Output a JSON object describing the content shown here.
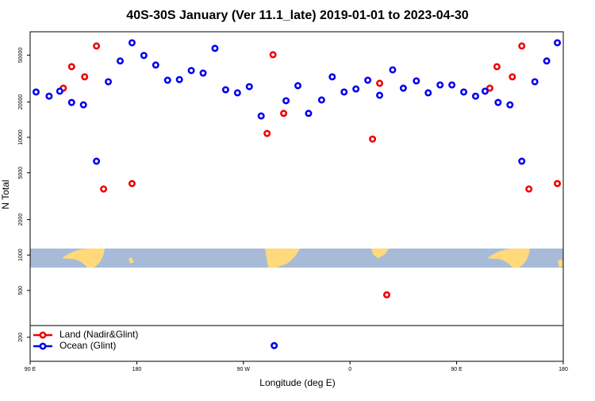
{
  "chart_data": {
    "type": "scatter",
    "title": "40S-30S January (Ver 11.1_late)   2019-01-01 to 2023-04-30",
    "x_label": "Longitude (deg E)",
    "y_label": "N Total",
    "log_y": true,
    "legend": "lower left",
    "xlim": [
      90,
      540
    ],
    "ylim": [
      125,
      79000
    ],
    "xticks": [
      {
        "value": 90,
        "label": "90 E"
      },
      180,
      {
        "value": 270,
        "label": "90 W"
      },
      {
        "value": 360,
        "label": "0"
      },
      {
        "value": 450,
        "label": "90 E"
      },
      {
        "value": 540,
        "label": "180"
      }
    ],
    "yticks": [
      200,
      500,
      1000,
      2000,
      5000,
      10000,
      20000,
      50000
    ],
    "series": [
      {
        "name": "Land (Nadir&Glint)",
        "color": "#ee0000",
        "x": [
          118,
          125,
          136,
          146,
          152,
          176,
          290,
          295,
          304,
          379,
          385,
          391,
          478,
          484,
          497,
          505,
          511,
          535
        ],
        "values": [
          26200,
          39900,
          32700,
          59800,
          3640,
          4050,
          10800,
          50400,
          16000,
          9680,
          28800,
          459,
          26200,
          39900,
          32700,
          59800,
          3640,
          4050
        ]
      },
      {
        "name": "Ocean (Glint)",
        "color": "#0000ee",
        "x": [
          95,
          106,
          115,
          125,
          135,
          146,
          156,
          166,
          176,
          186,
          196,
          206,
          216,
          226,
          236,
          246,
          255,
          265,
          275,
          285,
          296,
          306,
          316,
          325,
          336,
          345,
          355,
          365,
          375,
          385,
          396,
          405,
          416,
          426,
          436,
          446,
          456,
          466,
          474,
          485,
          495,
          505,
          516,
          526,
          535
        ],
        "values": [
          24300,
          22400,
          24700,
          19800,
          18900,
          6270,
          29700,
          44600,
          63700,
          49700,
          41200,
          30600,
          31000,
          37000,
          35200,
          57100,
          25400,
          23900,
          27000,
          15200,
          170,
          20500,
          27500,
          16000,
          20800,
          32700,
          24300,
          25800,
          30600,
          22800,
          37500,
          26200,
          30200,
          23900,
          27900,
          27900,
          24300,
          22400,
          24700,
          19800,
          18900,
          6270,
          29700,
          44600,
          63700
        ]
      }
    ]
  }
}
